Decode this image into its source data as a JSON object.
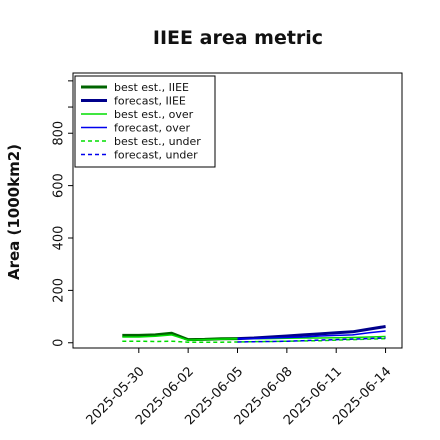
{
  "chart_data": {
    "type": "line",
    "title": "IIEE area metric",
    "xlabel": "",
    "ylabel": "Area (1000km2)",
    "ylim": [
      -20,
      1030
    ],
    "yticks": [
      0,
      200,
      400,
      600,
      800
    ],
    "xlim": [
      "2025-05-26",
      "2025-06-15"
    ],
    "xticks": [
      "2025-05-30",
      "2025-06-02",
      "2025-06-05",
      "2025-06-08",
      "2025-06-11",
      "2025-06-14"
    ],
    "highlight_tick": "2025-06-05",
    "highlight_color": "#228b22",
    "grid": false,
    "legend_position": "top-left",
    "series": [
      {
        "name": "best est., IIEE",
        "color": "#006400",
        "style": "solid",
        "width": 3,
        "x": [
          "2025-05-29",
          "2025-05-30",
          "2025-05-31",
          "2025-06-01",
          "2025-06-02",
          "2025-06-03",
          "2025-06-04",
          "2025-06-05"
        ],
        "values": [
          28,
          28,
          30,
          36,
          12,
          13,
          15,
          16
        ]
      },
      {
        "name": "forecast, IIEE",
        "color": "#00008b",
        "style": "solid",
        "width": 3,
        "x": [
          "2025-06-05",
          "2025-06-06",
          "2025-06-07",
          "2025-06-08",
          "2025-06-09",
          "2025-06-10",
          "2025-06-11",
          "2025-06-12",
          "2025-06-13",
          "2025-06-14"
        ],
        "values": [
          16,
          18,
          22,
          26,
          30,
          34,
          38,
          42,
          52,
          62
        ]
      },
      {
        "name": "best est., over",
        "color": "#00dd00",
        "style": "solid",
        "width": 1.5,
        "x": [
          "2025-05-29",
          "2025-05-30",
          "2025-05-31",
          "2025-06-01",
          "2025-06-02",
          "2025-06-03",
          "2025-06-04",
          "2025-06-05",
          "2025-06-06",
          "2025-06-07",
          "2025-06-08",
          "2025-06-09",
          "2025-06-10",
          "2025-06-11",
          "2025-06-12",
          "2025-06-13",
          "2025-06-14"
        ],
        "values": [
          22,
          22,
          25,
          30,
          10,
          12,
          14,
          15,
          15,
          16,
          17,
          18,
          18,
          19,
          20,
          22,
          24
        ]
      },
      {
        "name": "forecast, over",
        "color": "#0000ee",
        "style": "solid",
        "width": 1.5,
        "x": [
          "2025-06-05",
          "2025-06-06",
          "2025-06-07",
          "2025-06-08",
          "2025-06-09",
          "2025-06-10",
          "2025-06-11",
          "2025-06-12",
          "2025-06-13",
          "2025-06-14"
        ],
        "values": [
          15,
          16,
          18,
          20,
          22,
          26,
          28,
          30,
          38,
          45
        ]
      },
      {
        "name": "best est., under",
        "color": "#00dd00",
        "style": "dashed",
        "width": 1.5,
        "x": [
          "2025-05-29",
          "2025-05-30",
          "2025-05-31",
          "2025-06-01",
          "2025-06-02",
          "2025-06-03",
          "2025-06-04",
          "2025-06-05",
          "2025-06-06",
          "2025-06-07",
          "2025-06-08",
          "2025-06-09",
          "2025-06-10",
          "2025-06-11",
          "2025-06-12",
          "2025-06-13",
          "2025-06-14"
        ],
        "values": [
          6,
          6,
          5,
          6,
          2,
          2,
          2,
          3,
          4,
          5,
          6,
          7,
          8,
          10,
          12,
          14,
          16
        ]
      },
      {
        "name": "forecast, under",
        "color": "#0000ee",
        "style": "dashed",
        "width": 1.5,
        "x": [
          "2025-06-05",
          "2025-06-06",
          "2025-06-07",
          "2025-06-08",
          "2025-06-09",
          "2025-06-10",
          "2025-06-11",
          "2025-06-12",
          "2025-06-13",
          "2025-06-14"
        ],
        "values": [
          3,
          4,
          5,
          6,
          8,
          10,
          12,
          14,
          16,
          18
        ]
      }
    ]
  }
}
